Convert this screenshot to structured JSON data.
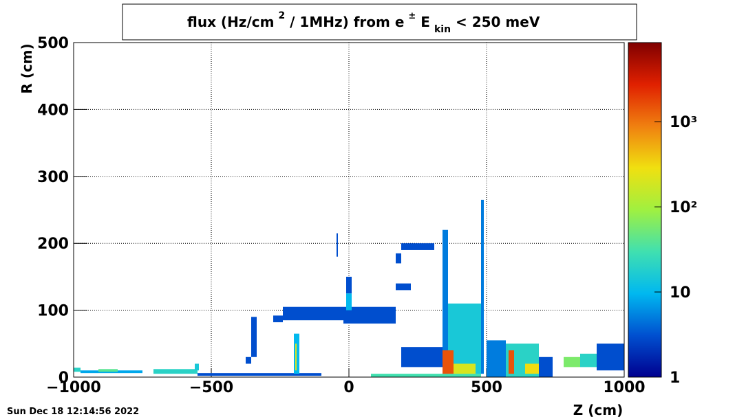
{
  "chart_data": {
    "type": "heatmap",
    "title": [
      "flux (Hz/cm",
      "2",
      " / 1MHz) from ",
      "e",
      "±",
      " E",
      "kin",
      " < 250 meV"
    ],
    "x_label": "Z (cm)",
    "y_label": "R (cm)",
    "xlim": [
      -1000,
      1000
    ],
    "ylim": [
      0,
      500
    ],
    "xticks": [
      {
        "value": -1000,
        "label": "−1000"
      },
      {
        "value": -500,
        "label": "−500"
      },
      0,
      500,
      1000
    ],
    "yticks": [
      0,
      100,
      200,
      300,
      400,
      500
    ],
    "grid": true,
    "zlim": [
      1,
      8500
    ],
    "zlog": true,
    "zticks": [
      1,
      10,
      {
        "value": 100,
        "label": "10²"
      },
      {
        "value": 1000,
        "label": "10³"
      }
    ],
    "colormap": [
      "#00008f",
      "#0050d0",
      "#00b8f0",
      "#40e0b0",
      "#a0f040",
      "#f0e010",
      "#f08010",
      "#e02000",
      "#800000"
    ],
    "cells": [
      {
        "z": [
          -1000,
          -975
        ],
        "r": [
          8,
          14
        ],
        "value": 20
      },
      {
        "z": [
          -975,
          -750
        ],
        "r": [
          6,
          10
        ],
        "value": 8
      },
      {
        "z": [
          -910,
          -840
        ],
        "r": [
          8,
          12
        ],
        "value": 40
      },
      {
        "z": [
          -710,
          -550
        ],
        "r": [
          5,
          12
        ],
        "value": 20
      },
      {
        "z": [
          -560,
          -545
        ],
        "r": [
          10,
          20
        ],
        "value": 15
      },
      {
        "z": [
          -550,
          -100
        ],
        "r": [
          2,
          6
        ],
        "value": 3
      },
      {
        "z": [
          -375,
          -355
        ],
        "r": [
          20,
          30
        ],
        "value": 3
      },
      {
        "z": [
          -355,
          -335
        ],
        "r": [
          30,
          90
        ],
        "value": 3
      },
      {
        "z": [
          -275,
          -240
        ],
        "r": [
          82,
          92
        ],
        "value": 3
      },
      {
        "z": [
          -240,
          -20
        ],
        "r": [
          85,
          105
        ],
        "value": 3
      },
      {
        "z": [
          -20,
          170
        ],
        "r": [
          80,
          105
        ],
        "value": 3
      },
      {
        "z": [
          -200,
          -180
        ],
        "r": [
          5,
          65
        ],
        "value": 10
      },
      {
        "z": [
          -195,
          -190
        ],
        "r": [
          10,
          50
        ],
        "value": 200
      },
      {
        "z": [
          -45,
          -40
        ],
        "r": [
          180,
          215
        ],
        "value": 3
      },
      {
        "z": [
          -10,
          10
        ],
        "r": [
          125,
          150
        ],
        "value": 3
      },
      {
        "z": [
          -10,
          10
        ],
        "r": [
          100,
          125
        ],
        "value": 10
      },
      {
        "z": [
          170,
          225
        ],
        "r": [
          130,
          140
        ],
        "value": 3
      },
      {
        "z": [
          190,
          310
        ],
        "r": [
          190,
          200
        ],
        "value": 3
      },
      {
        "z": [
          170,
          190
        ],
        "r": [
          170,
          185
        ],
        "value": 3
      },
      {
        "z": [
          190,
          340
        ],
        "r": [
          15,
          45
        ],
        "value": 3
      },
      {
        "z": [
          80,
          480
        ],
        "r": [
          0,
          5
        ],
        "value": 30
      },
      {
        "z": [
          340,
          360
        ],
        "r": [
          5,
          220
        ],
        "value": 5
      },
      {
        "z": [
          360,
          480
        ],
        "r": [
          5,
          110
        ],
        "value": 15
      },
      {
        "z": [
          340,
          380
        ],
        "r": [
          5,
          40
        ],
        "value": 1500
      },
      {
        "z": [
          380,
          460
        ],
        "r": [
          5,
          20
        ],
        "value": 200
      },
      {
        "z": [
          480,
          490
        ],
        "r": [
          5,
          265
        ],
        "value": 5
      },
      {
        "z": [
          500,
          570
        ],
        "r": [
          0,
          55
        ],
        "value": 5
      },
      {
        "z": [
          570,
          690
        ],
        "r": [
          0,
          50
        ],
        "value": 20
      },
      {
        "z": [
          580,
          600
        ],
        "r": [
          5,
          40
        ],
        "value": 1500
      },
      {
        "z": [
          640,
          690
        ],
        "r": [
          5,
          20
        ],
        "value": 300
      },
      {
        "z": [
          690,
          740
        ],
        "r": [
          0,
          30
        ],
        "value": 3
      },
      {
        "z": [
          780,
          840
        ],
        "r": [
          15,
          30
        ],
        "value": 60
      },
      {
        "z": [
          840,
          900
        ],
        "r": [
          15,
          35
        ],
        "value": 20
      },
      {
        "z": [
          900,
          1000
        ],
        "r": [
          10,
          50
        ],
        "value": 3
      }
    ]
  },
  "timestamp": "Sun Dec 18 12:14:56 2022"
}
